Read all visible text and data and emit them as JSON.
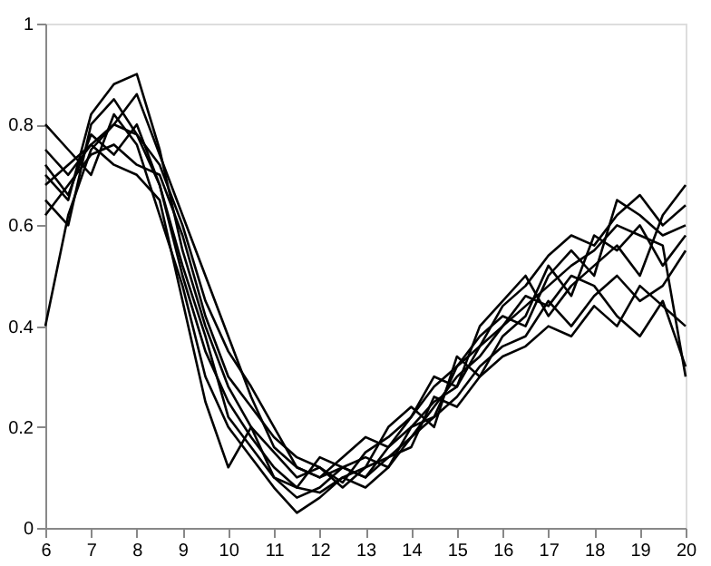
{
  "chart_data": {
    "type": "line",
    "x": [
      6,
      6.5,
      7,
      7.5,
      8,
      8.5,
      9,
      9.5,
      10,
      10.5,
      11,
      11.5,
      12,
      12.5,
      13,
      13.5,
      14,
      14.5,
      15,
      15.5,
      16,
      16.5,
      17,
      17.5,
      18,
      18.5,
      19,
      19.5,
      20
    ],
    "xlim": [
      6,
      20
    ],
    "xticks": [
      6,
      7,
      8,
      9,
      10,
      11,
      12,
      13,
      14,
      15,
      16,
      17,
      18,
      19,
      20
    ],
    "ylim": [
      0,
      1
    ],
    "yticks": [
      0,
      0.2,
      0.4,
      0.6,
      0.8,
      1
    ],
    "grid": false,
    "legend": false,
    "marker": "none",
    "line_style": "solid",
    "series": [
      {
        "color": "#000000",
        "values": [
          0.4,
          0.62,
          0.75,
          0.8,
          0.78,
          0.68,
          0.5,
          0.35,
          0.25,
          0.18,
          0.12,
          0.08,
          0.07,
          0.1,
          0.12,
          0.14,
          0.18,
          0.24,
          0.3,
          0.34,
          0.4,
          0.44,
          0.48,
          0.52,
          0.55,
          0.6,
          0.58,
          0.56,
          0.3
        ]
      },
      {
        "color": "#000000",
        "values": [
          0.7,
          0.65,
          0.82,
          0.88,
          0.9,
          0.75,
          0.55,
          0.4,
          0.28,
          0.2,
          0.15,
          0.1,
          0.12,
          0.09,
          0.15,
          0.18,
          0.22,
          0.28,
          0.32,
          0.38,
          0.42,
          0.4,
          0.5,
          0.55,
          0.5,
          0.65,
          0.62,
          0.58,
          0.6
        ]
      },
      {
        "color": "#000000",
        "values": [
          0.75,
          0.7,
          0.76,
          0.72,
          0.7,
          0.65,
          0.45,
          0.25,
          0.12,
          0.2,
          0.1,
          0.06,
          0.08,
          0.12,
          0.1,
          0.16,
          0.2,
          0.25,
          0.28,
          0.36,
          0.4,
          0.46,
          0.44,
          0.5,
          0.48,
          0.42,
          0.38,
          0.45,
          0.32
        ]
      },
      {
        "color": "#000000",
        "values": [
          0.65,
          0.6,
          0.8,
          0.85,
          0.78,
          0.72,
          0.6,
          0.45,
          0.35,
          0.28,
          0.2,
          0.12,
          0.1,
          0.14,
          0.18,
          0.16,
          0.22,
          0.3,
          0.28,
          0.4,
          0.45,
          0.5,
          0.42,
          0.48,
          0.52,
          0.56,
          0.5,
          0.62,
          0.68
        ]
      },
      {
        "color": "#000000",
        "values": [
          0.8,
          0.75,
          0.7,
          0.82,
          0.76,
          0.62,
          0.48,
          0.3,
          0.2,
          0.14,
          0.08,
          0.03,
          0.06,
          0.1,
          0.08,
          0.12,
          0.18,
          0.22,
          0.26,
          0.32,
          0.36,
          0.38,
          0.45,
          0.4,
          0.46,
          0.5,
          0.45,
          0.48,
          0.55
        ]
      },
      {
        "color": "#000000",
        "values": [
          0.62,
          0.68,
          0.74,
          0.76,
          0.72,
          0.7,
          0.58,
          0.42,
          0.3,
          0.24,
          0.18,
          0.14,
          0.12,
          0.08,
          0.12,
          0.2,
          0.24,
          0.2,
          0.34,
          0.3,
          0.38,
          0.42,
          0.52,
          0.46,
          0.58,
          0.55,
          0.6,
          0.52,
          0.58
        ]
      },
      {
        "color": "#000000",
        "values": [
          0.72,
          0.66,
          0.78,
          0.74,
          0.8,
          0.68,
          0.52,
          0.38,
          0.22,
          0.16,
          0.1,
          0.08,
          0.14,
          0.12,
          0.1,
          0.14,
          0.16,
          0.26,
          0.24,
          0.3,
          0.34,
          0.36,
          0.4,
          0.38,
          0.44,
          0.4,
          0.48,
          0.44,
          0.4
        ]
      },
      {
        "color": "#000000",
        "values": [
          0.68,
          0.72,
          0.76,
          0.8,
          0.86,
          0.74,
          0.62,
          0.5,
          0.38,
          0.26,
          0.16,
          0.12,
          0.1,
          0.12,
          0.14,
          0.12,
          0.2,
          0.22,
          0.32,
          0.36,
          0.44,
          0.48,
          0.54,
          0.58,
          0.56,
          0.62,
          0.66,
          0.6,
          0.64
        ]
      }
    ]
  }
}
